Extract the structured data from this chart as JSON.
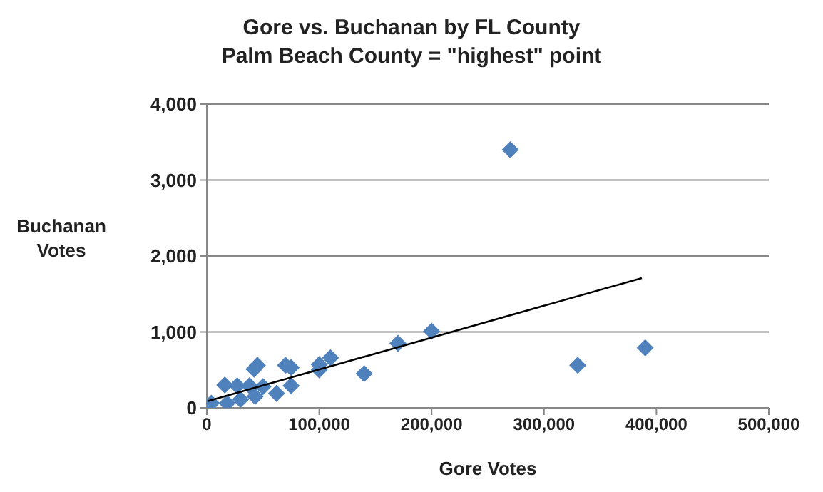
{
  "chart_data": {
    "type": "scatter",
    "title": "Gore vs. Buchanan by FL County\nPalm Beach County = \"highest\" point",
    "xlabel": "Gore Votes",
    "ylabel": "Buchanan Votes",
    "xlim": [
      0,
      500000
    ],
    "xticks": [
      {
        "value": 0,
        "label": "0"
      },
      {
        "value": 100000,
        "label": "100,000"
      },
      {
        "value": 200000,
        "label": "200,000"
      },
      {
        "value": 300000,
        "label": "300,000"
      },
      {
        "value": 400000,
        "label": "400,000"
      },
      {
        "value": 500000,
        "label": "500,000"
      }
    ],
    "ylim": [
      0,
      4000
    ],
    "yticks": [
      {
        "value": 0,
        "label": "0"
      },
      {
        "value": 1000,
        "label": "1,000"
      },
      {
        "value": 2000,
        "label": "2,000"
      },
      {
        "value": 3000,
        "label": "3,000"
      },
      {
        "value": 4000,
        "label": "4,000"
      }
    ],
    "grid": "y",
    "legend": false,
    "series": [
      {
        "marker": "diamond",
        "color": "#4f81bd",
        "x": [
          270000,
          330000,
          390000,
          200000,
          170000,
          140000,
          110000,
          100000,
          100000,
          75000,
          70000,
          75000,
          45000,
          42000,
          62000,
          50000,
          16000,
          27000,
          38000,
          43000,
          30000,
          18000,
          4000
        ],
        "values": [
          3400,
          560,
          790,
          1010,
          850,
          450,
          660,
          500,
          570,
          530,
          560,
          290,
          560,
          510,
          190,
          280,
          300,
          290,
          290,
          150,
          110,
          60,
          60
        ]
      },
      {
        "type": "line",
        "marker": "none",
        "color": "#000000",
        "x": [
          1000,
          387000
        ],
        "values": [
          90,
          1710
        ]
      }
    ]
  }
}
